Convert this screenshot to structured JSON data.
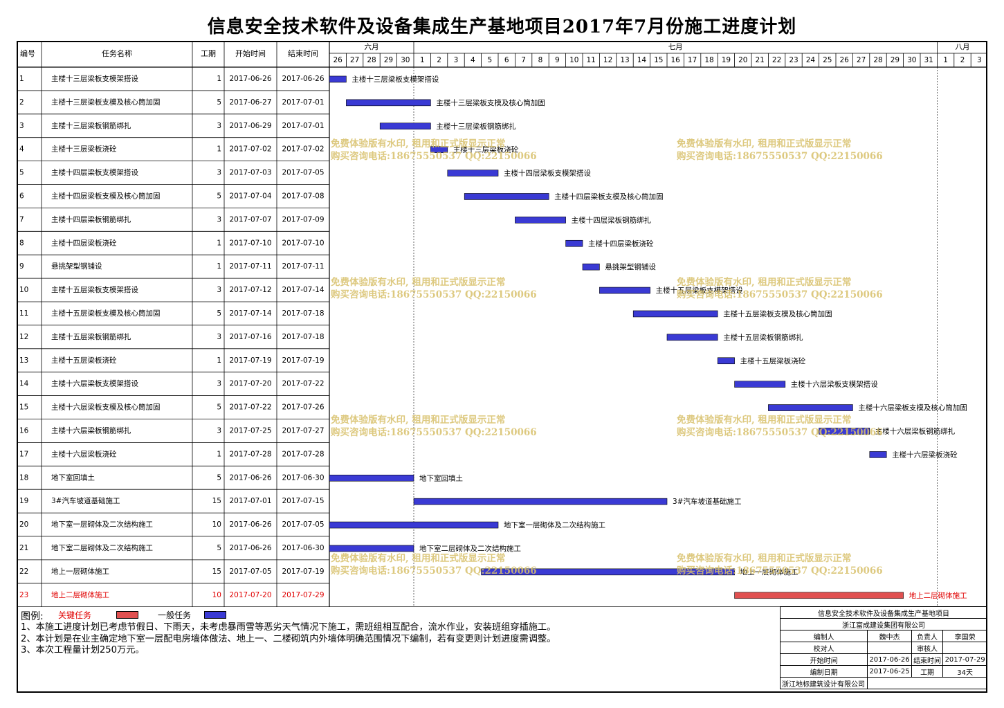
{
  "title": "信息安全技术软件及设备集成生产基地项目2017年7月份施工进度计划",
  "columns": {
    "no": "编号",
    "name": "任务名称",
    "duration": "工期",
    "start": "开始时间",
    "end": "结束时间"
  },
  "months": [
    {
      "label": "六月",
      "days": [
        "26",
        "27",
        "28",
        "29",
        "30"
      ]
    },
    {
      "label": "七月",
      "days": [
        "1",
        "2",
        "3",
        "4",
        "5",
        "6",
        "7",
        "8",
        "9",
        "10",
        "11",
        "12",
        "13",
        "14",
        "15",
        "16",
        "17",
        "18",
        "19",
        "20",
        "21",
        "22",
        "23",
        "24",
        "25",
        "26",
        "27",
        "28",
        "29",
        "30",
        "31"
      ]
    },
    {
      "label": "八月",
      "days": [
        "1",
        "2",
        "3"
      ]
    }
  ],
  "colors": {
    "normal": "#3a3ad4",
    "critical": "#e05050",
    "critical_text": "#e00000",
    "watermark": "#d8c06a"
  },
  "chart_data": {
    "type": "gantt",
    "x_start": "2017-06-26",
    "x_end": "2017-08-03",
    "tasks": [
      {
        "no": "1",
        "name": "主楼十三层梁板支模架搭设",
        "duration": "1",
        "start": "2017-06-26",
        "end": "2017-06-26",
        "critical": false
      },
      {
        "no": "2",
        "name": "主楼十三层梁板支模及核心筒加固",
        "duration": "5",
        "start": "2017-06-27",
        "end": "2017-07-01",
        "critical": false
      },
      {
        "no": "3",
        "name": "主楼十三层梁板钢筋绑扎",
        "duration": "3",
        "start": "2017-06-29",
        "end": "2017-07-01",
        "critical": false
      },
      {
        "no": "4",
        "name": "主楼十三层梁板浇砼",
        "duration": "1",
        "start": "2017-07-02",
        "end": "2017-07-02",
        "critical": false
      },
      {
        "no": "5",
        "name": "主楼十四层梁板支模架搭设",
        "duration": "3",
        "start": "2017-07-03",
        "end": "2017-07-05",
        "critical": false
      },
      {
        "no": "6",
        "name": "主楼十四层梁板支模及核心筒加固",
        "duration": "5",
        "start": "2017-07-04",
        "end": "2017-07-08",
        "critical": false
      },
      {
        "no": "7",
        "name": "主楼十四层梁板钢筋绑扎",
        "duration": "3",
        "start": "2017-07-07",
        "end": "2017-07-09",
        "critical": false
      },
      {
        "no": "8",
        "name": "主楼十四层梁板浇砼",
        "duration": "1",
        "start": "2017-07-10",
        "end": "2017-07-10",
        "critical": false
      },
      {
        "no": "9",
        "name": "悬挑架型钢铺设",
        "duration": "1",
        "start": "2017-07-11",
        "end": "2017-07-11",
        "critical": false
      },
      {
        "no": "10",
        "name": "主楼十五层梁板支模架搭设",
        "duration": "3",
        "start": "2017-07-12",
        "end": "2017-07-14",
        "critical": false
      },
      {
        "no": "11",
        "name": "主楼十五层梁板支模及核心筒加固",
        "duration": "5",
        "start": "2017-07-14",
        "end": "2017-07-18",
        "critical": false
      },
      {
        "no": "12",
        "name": "主楼十五层梁板钢筋绑扎",
        "duration": "3",
        "start": "2017-07-16",
        "end": "2017-07-18",
        "critical": false
      },
      {
        "no": "13",
        "name": "主楼十五层梁板浇砼",
        "duration": "1",
        "start": "2017-07-19",
        "end": "2017-07-19",
        "critical": false
      },
      {
        "no": "14",
        "name": "主楼十六层梁板支模架搭设",
        "duration": "3",
        "start": "2017-07-20",
        "end": "2017-07-22",
        "critical": false
      },
      {
        "no": "15",
        "name": "主楼十六层梁板支模及核心筒加固",
        "duration": "5",
        "start": "2017-07-22",
        "end": "2017-07-26",
        "critical": false
      },
      {
        "no": "16",
        "name": "主楼十六层梁板钢筋绑扎",
        "duration": "3",
        "start": "2017-07-25",
        "end": "2017-07-27",
        "critical": false
      },
      {
        "no": "17",
        "name": "主楼十六层梁板浇砼",
        "duration": "1",
        "start": "2017-07-28",
        "end": "2017-07-28",
        "critical": false
      },
      {
        "no": "18",
        "name": "地下室回填土",
        "duration": "5",
        "start": "2017-06-26",
        "end": "2017-06-30",
        "critical": false
      },
      {
        "no": "19",
        "name": "3#汽车坡道基础施工",
        "duration": "15",
        "start": "2017-07-01",
        "end": "2017-07-15",
        "critical": false
      },
      {
        "no": "20",
        "name": "地下室一层砌体及二次结构施工",
        "duration": "10",
        "start": "2017-06-26",
        "end": "2017-07-05",
        "critical": false
      },
      {
        "no": "21",
        "name": "地下室二层砌体及二次结构施工",
        "duration": "5",
        "start": "2017-06-26",
        "end": "2017-06-30",
        "critical": false
      },
      {
        "no": "22",
        "name": "地上一层砌体施工",
        "duration": "15",
        "start": "2017-07-05",
        "end": "2017-07-19",
        "critical": false
      },
      {
        "no": "23",
        "name": "地上二层砌体施工",
        "duration": "10",
        "start": "2017-07-20",
        "end": "2017-07-29",
        "critical": true
      }
    ]
  },
  "watermark": {
    "line1": "免费体验版有水印, 租用和正式版显示正常",
    "line2": "购买咨询电话:18675550537 QQ:22150066"
  },
  "legend": {
    "label": "图例:",
    "critical": "关键任务",
    "normal": "一般任务"
  },
  "notes": [
    "1、本施工进度计划已考虑节假日、下雨天，未考虑暴雨雪等恶劣天气情况下施工，需班组相互配合，流水作业，安装班组穿插施工。",
    "2、本计划是在业主确定地下室一层配电房墙体做法、地上一、二楼砌筑内外墙体明确范围情况下编制，若有变更则计划进度需调整。",
    "3、本次工程量计划250万元。"
  ],
  "info": {
    "project": "信息安全技术软件及设备集成生产基地项目",
    "company": "浙江富成建设集团有限公司",
    "editor_label": "编制人",
    "editor": "魏中杰",
    "manager_label": "负责人",
    "manager": "李国荣",
    "checker_label": "校对人",
    "checker": "",
    "reviewer_label": "审核人",
    "reviewer": "",
    "start_label": "开始时间",
    "start": "2017-06-26",
    "end_label": "结束时间",
    "end": "2017-07-29",
    "date_label": "编制日期",
    "date": "2017-06-25",
    "period_label": "工期",
    "period": "34天",
    "designer": "浙江地标建筑设计有限公司"
  }
}
